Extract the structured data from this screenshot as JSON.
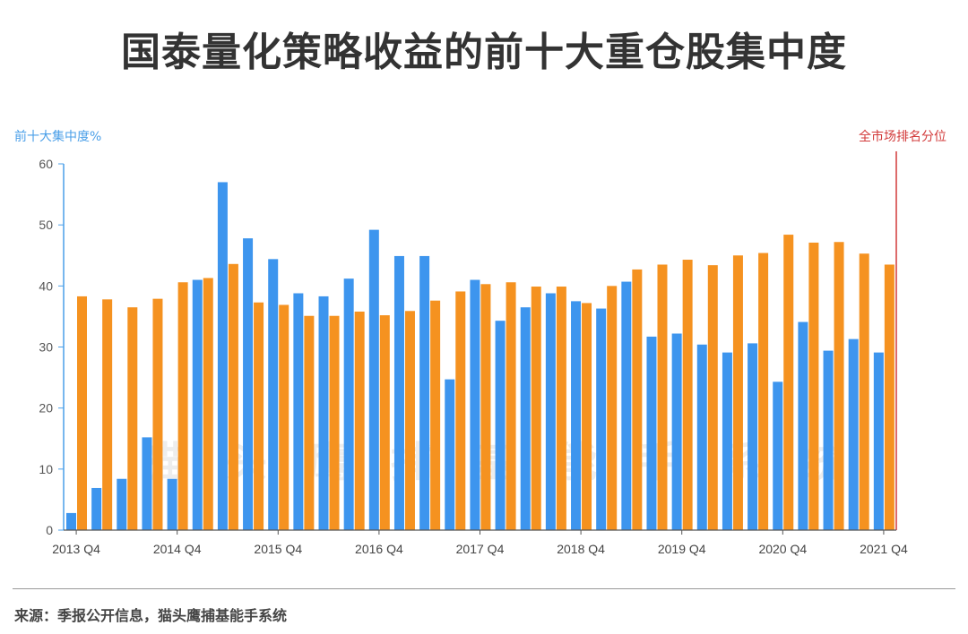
{
  "title": "国泰量化策略收益的前十大重仓股集中度",
  "source": "来源：季报公开信息，猫头鹰捕基能手系统",
  "colors": {
    "blue": "#3d95ee",
    "orange": "#f59220",
    "axis_left": "#4a9fe8",
    "axis_right": "#d23a3a"
  },
  "chart_data": {
    "type": "bar",
    "ylabel_left": "前十大集中度%",
    "ylabel_right": "全市场排名分位",
    "ylim": [
      0,
      60
    ],
    "yticks": [
      0,
      10,
      20,
      30,
      40,
      50,
      60
    ],
    "xtick_labels": [
      "2013 Q4",
      "2014 Q4",
      "2015 Q4",
      "2016 Q4",
      "2017 Q4",
      "2018 Q4",
      "2019 Q4",
      "2020 Q4",
      "2021 Q4"
    ],
    "categories": [
      "2013Q4",
      "2014Q1",
      "2014Q2",
      "2014Q3",
      "2014Q4",
      "2015Q1",
      "2015Q2",
      "2015Q3",
      "2015Q4",
      "2016Q1",
      "2016Q2",
      "2016Q3",
      "2016Q4",
      "2017Q1",
      "2017Q2",
      "2017Q3",
      "2017Q4",
      "2018Q1",
      "2018Q2",
      "2018Q3",
      "2018Q4",
      "2019Q1",
      "2019Q2",
      "2019Q3",
      "2019Q4",
      "2020Q1",
      "2020Q2",
      "2020Q3",
      "2020Q4",
      "2021Q1",
      "2021Q2",
      "2021Q3",
      "2021Q4"
    ],
    "series": [
      {
        "name": "前十大集中度%",
        "color": "#3d95ee",
        "values": [
          2.8,
          6.9,
          8.4,
          15.2,
          8.4,
          41.0,
          57.0,
          47.8,
          44.4,
          38.8,
          38.3,
          41.2,
          49.2,
          44.9,
          44.9,
          24.7,
          41.0,
          34.3,
          36.5,
          38.8,
          37.5,
          36.3,
          40.7,
          31.7,
          32.2,
          30.4,
          29.1,
          30.6,
          24.3,
          34.1,
          29.4,
          31.3,
          29.1
        ]
      },
      {
        "name": "全市场排名分位",
        "color": "#f59220",
        "values": [
          38.3,
          37.8,
          36.5,
          37.9,
          40.6,
          41.3,
          43.6,
          37.3,
          36.9,
          35.1,
          35.1,
          35.8,
          35.2,
          35.9,
          37.6,
          39.1,
          40.3,
          40.6,
          39.9,
          39.9,
          37.2,
          40.0,
          42.7,
          43.5,
          44.3,
          43.4,
          45.0,
          45.4,
          48.4,
          47.1,
          47.2,
          45.3,
          43.5
        ]
      }
    ]
  }
}
